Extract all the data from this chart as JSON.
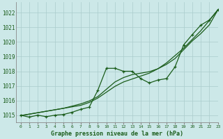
{
  "title": "Graphe pression niveau de la mer (hPa)",
  "background_color": "#cce8e8",
  "grid_color": "#aacccc",
  "line_color": "#1a5c1a",
  "text_color": "#1a5c1a",
  "xlim": [
    -0.5,
    23
  ],
  "ylim": [
    1014.5,
    1022.7
  ],
  "yticks": [
    1015,
    1016,
    1017,
    1018,
    1019,
    1020,
    1021,
    1022
  ],
  "xticks": [
    0,
    1,
    2,
    3,
    4,
    5,
    6,
    7,
    8,
    9,
    10,
    11,
    12,
    13,
    14,
    15,
    16,
    17,
    18,
    19,
    20,
    21,
    22,
    23
  ],
  "hours": [
    0,
    1,
    2,
    3,
    4,
    5,
    6,
    7,
    8,
    9,
    10,
    11,
    12,
    13,
    14,
    15,
    16,
    17,
    18,
    19,
    20,
    21,
    22,
    23
  ],
  "series_linear1": [
    1014.97,
    1015.07,
    1015.17,
    1015.27,
    1015.37,
    1015.47,
    1015.62,
    1015.77,
    1015.97,
    1016.27,
    1016.77,
    1017.27,
    1017.57,
    1017.77,
    1017.87,
    1017.97,
    1018.17,
    1018.47,
    1018.87,
    1019.47,
    1020.07,
    1020.57,
    1021.17,
    1022.2
  ],
  "series_linear2": [
    1014.97,
    1015.07,
    1015.17,
    1015.27,
    1015.37,
    1015.47,
    1015.57,
    1015.67,
    1015.87,
    1016.17,
    1016.57,
    1016.97,
    1017.27,
    1017.47,
    1017.67,
    1017.87,
    1018.17,
    1018.57,
    1019.07,
    1019.57,
    1020.17,
    1020.77,
    1021.47,
    1022.2
  ],
  "series_markers": [
    1015.0,
    1014.87,
    1015.0,
    1014.9,
    1015.0,
    1015.05,
    1015.2,
    1015.4,
    1015.55,
    1016.7,
    1018.2,
    1018.2,
    1018.0,
    1018.0,
    1017.5,
    1017.2,
    1017.4,
    1017.5,
    1018.3,
    1019.8,
    1020.5,
    1021.15,
    1021.5,
    1022.2
  ]
}
